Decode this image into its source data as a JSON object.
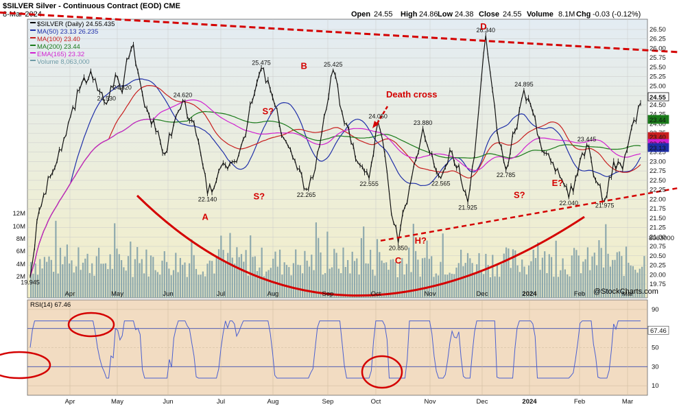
{
  "header": {
    "title": "$SILVER Silver - Continuous Contract (EOD) CME",
    "date": "8-Mar-2024",
    "open_label": "Open",
    "open": "24.55",
    "high_label": "High",
    "high": "24.86",
    "low_label": "Low",
    "low": "24.38",
    "close_label": "Close",
    "close": "24.55",
    "volume_label": "Volume",
    "volume": "8.1M",
    "chg_label": "Chg",
    "chg": "-0.03 (-0.12%)",
    "watermark": "@StockCharts.com"
  },
  "legend": [
    {
      "text": "$SILVER (Daily) 24.55.435",
      "color": "#000000"
    },
    {
      "text": "MA(50) 23.13 26.235",
      "color": "#1f2fa8"
    },
    {
      "text": "MA(100) 23.40",
      "color": "#c81e1e"
    },
    {
      "text": "MA(200) 23.44",
      "color": "#1a7a1a"
    },
    {
      "text": "EMA(165) 23.32",
      "color": "#d020d0"
    },
    {
      "text": "Volume 8,063,000",
      "color": "#6e9aa6"
    }
  ],
  "colors": {
    "price_bg_top": "#e3ecf3",
    "price_bg_bottom": "#f3efc8",
    "rsi_bg": "#f2dcc2",
    "price": "#111111",
    "ma50": "#1f2fa8",
    "ma100": "#c81e1e",
    "ma200": "#1a7a1a",
    "ema165": "#d020d0",
    "volume": "#8ea9ad",
    "rsi": "#4a5fd0",
    "annotation": "#d40000"
  },
  "chart_data": [
    {
      "type": "line",
      "name": "price",
      "y_ticks": [
        19.75,
        20.0,
        20.25,
        20.5,
        20.75,
        21.0,
        21.25,
        21.5,
        21.75,
        22.0,
        22.25,
        22.5,
        22.75,
        23.0,
        23.25,
        23.5,
        23.75,
        24.0,
        24.25,
        24.5,
        24.75,
        25.0,
        25.25,
        25.5,
        25.75,
        26.0,
        26.25,
        26.5
      ],
      "ylim": [
        19.62,
        26.72
      ],
      "x_months": [
        "Apr",
        "May",
        "Jun",
        "Jul",
        "Aug",
        "Sep",
        "Oct",
        "Nov",
        "Dec",
        "2024",
        "Feb",
        "Mar"
      ],
      "x_domain_days": [
        0,
        260
      ],
      "close_points": [
        [
          0,
          19.95
        ],
        [
          4,
          21.7
        ],
        [
          9,
          22.6
        ],
        [
          14,
          23.3
        ],
        [
          18,
          24.2
        ],
        [
          22,
          24.9
        ],
        [
          27,
          25.4
        ],
        [
          30,
          24.9
        ],
        [
          34,
          24.53
        ],
        [
          38,
          25.3
        ],
        [
          41,
          24.82
        ],
        [
          43,
          25.7
        ],
        [
          46,
          26.1
        ],
        [
          49,
          25.1
        ],
        [
          52,
          24.4
        ],
        [
          56,
          23.8
        ],
        [
          60,
          23.2
        ],
        [
          64,
          24.0
        ],
        [
          68,
          24.62
        ],
        [
          72,
          24.1
        ],
        [
          76,
          23.2
        ],
        [
          79,
          22.14
        ],
        [
          83,
          22.5
        ],
        [
          87,
          22.9
        ],
        [
          91,
          23.0
        ],
        [
          95,
          23.6
        ],
        [
          99,
          24.6
        ],
        [
          103,
          25.475
        ],
        [
          107,
          24.9
        ],
        [
          111,
          24.0
        ],
        [
          115,
          23.4
        ],
        [
          119,
          22.8
        ],
        [
          123,
          22.265
        ],
        [
          127,
          22.8
        ],
        [
          131,
          24.2
        ],
        [
          135,
          25.425
        ],
        [
          139,
          24.3
        ],
        [
          143,
          23.5
        ],
        [
          147,
          22.9
        ],
        [
          151,
          22.555
        ],
        [
          155,
          24.05
        ],
        [
          158,
          23.2
        ],
        [
          161,
          21.6
        ],
        [
          164,
          20.85
        ],
        [
          167,
          21.8
        ],
        [
          171,
          22.9
        ],
        [
          175,
          23.88
        ],
        [
          179,
          23.2
        ],
        [
          183,
          22.565
        ],
        [
          187,
          23.3
        ],
        [
          191,
          22.9
        ],
        [
          195,
          21.925
        ],
        [
          199,
          23.8
        ],
        [
          203,
          26.34
        ],
        [
          206,
          24.9
        ],
        [
          209,
          23.5
        ],
        [
          212,
          22.785
        ],
        [
          216,
          23.8
        ],
        [
          220,
          24.895
        ],
        [
          224,
          24.3
        ],
        [
          228,
          23.3
        ],
        [
          232,
          23.0
        ],
        [
          236,
          22.6
        ],
        [
          240,
          22.04
        ],
        [
          244,
          22.7
        ],
        [
          248,
          23.445
        ],
        [
          252,
          22.5
        ],
        [
          256,
          21.975
        ],
        [
          260,
          23.0
        ],
        [
          264,
          22.8
        ],
        [
          268,
          23.9
        ],
        [
          272,
          24.55
        ]
      ],
      "labels": [
        {
          "x": 0,
          "y": 19.945,
          "text": "19.945"
        },
        {
          "x": 34,
          "y": 24.53,
          "text": "24.530"
        },
        {
          "x": 41,
          "y": 24.82,
          "text": "24.820"
        },
        {
          "x": 68,
          "y": 24.62,
          "text": "24.620"
        },
        {
          "x": 79,
          "y": 22.14,
          "text": "22.140"
        },
        {
          "x": 103,
          "y": 25.475,
          "text": "25.475"
        },
        {
          "x": 123,
          "y": 22.265,
          "text": "22.265"
        },
        {
          "x": 135,
          "y": 25.425,
          "text": "25.425"
        },
        {
          "x": 151,
          "y": 22.555,
          "text": "22.555"
        },
        {
          "x": 155,
          "y": 24.05,
          "text": "24.050"
        },
        {
          "x": 164,
          "y": 20.85,
          "text": "20.850"
        },
        {
          "x": 175,
          "y": 23.88,
          "text": "23.880"
        },
        {
          "x": 183,
          "y": 22.565,
          "text": "22.565"
        },
        {
          "x": 195,
          "y": 21.925,
          "text": "21.925"
        },
        {
          "x": 203,
          "y": 26.34,
          "text": "26.340"
        },
        {
          "x": 212,
          "y": 22.785,
          "text": "22.785"
        },
        {
          "x": 220,
          "y": 24.895,
          "text": "24.895"
        },
        {
          "x": 240,
          "y": 22.04,
          "text": "22.040"
        },
        {
          "x": 248,
          "y": 23.445,
          "text": "23.445"
        },
        {
          "x": 256,
          "y": 21.975,
          "text": "21.975"
        }
      ],
      "pattern_labels": [
        {
          "x": 78,
          "y": 21.45,
          "text": "A"
        },
        {
          "x": 122,
          "y": 25.45,
          "text": "B"
        },
        {
          "x": 164,
          "y": 20.3,
          "text": "C"
        },
        {
          "x": 202,
          "y": 26.5,
          "text": "D"
        },
        {
          "x": 102,
          "y": 22.0,
          "text": "S?"
        },
        {
          "x": 106,
          "y": 24.25,
          "text": "S?"
        },
        {
          "x": 174,
          "y": 20.82,
          "text": "H?"
        },
        {
          "x": 218,
          "y": 22.03,
          "text": "S?"
        },
        {
          "x": 235,
          "y": 22.35,
          "text": "E?"
        },
        {
          "x": 170,
          "y": 24.7,
          "text": "Death cross"
        }
      ],
      "right_values": [
        {
          "y": 24.55,
          "text": "24.55"
        },
        {
          "y": 23.44,
          "text": "23.44"
        },
        {
          "y": 23.4,
          "text": "23.40"
        },
        {
          "y": 23.32,
          "text": "23.32"
        },
        {
          "y": 23.13,
          "text": "23.13"
        }
      ]
    },
    {
      "type": "bar",
      "name": "volume",
      "y_ticks": [
        "2M",
        "4M",
        "6M",
        "8M",
        "10M",
        "12M"
      ],
      "current": "8063000"
    },
    {
      "type": "line",
      "name": "RSI(14)",
      "title": "RSI(14) 67.46",
      "y_ticks": [
        10,
        30,
        50,
        70,
        90
      ],
      "ylim": [
        0,
        100
      ],
      "current": "67.46",
      "x_months": [
        "Apr",
        "May",
        "Jun",
        "Jul",
        "Aug",
        "Sep",
        "Oct",
        "Nov",
        "Dec",
        "2024",
        "Feb",
        "Mar"
      ]
    }
  ]
}
